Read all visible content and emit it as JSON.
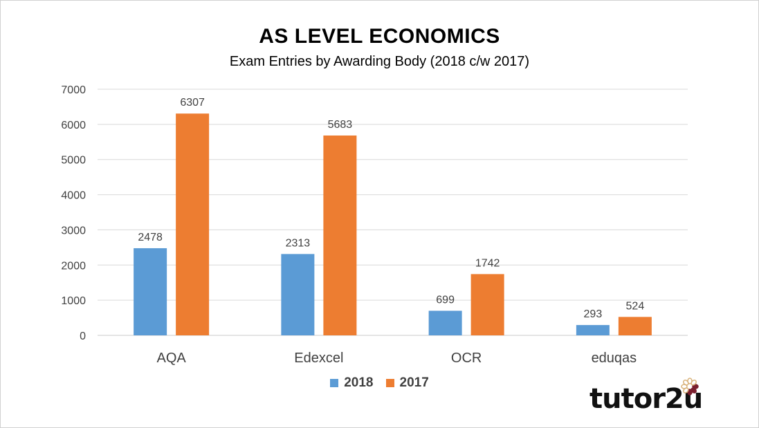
{
  "chart_data": {
    "type": "bar",
    "title": "AS LEVEL ECONOMICS",
    "subtitle": "Exam Entries by Awarding Body (2018 c/w 2017)",
    "categories": [
      "AQA",
      "Edexcel",
      "OCR",
      "eduqas"
    ],
    "series": [
      {
        "name": "2018",
        "values": [
          2478,
          2313,
          699,
          293
        ],
        "color": "#5b9bd5"
      },
      {
        "name": "2017",
        "values": [
          6307,
          5683,
          1742,
          524
        ],
        "color": "#ed7d31"
      }
    ],
    "ylim": [
      0,
      7000
    ],
    "yticks": [
      "0",
      "1000",
      "2000",
      "3000",
      "4000",
      "5000",
      "6000",
      "7000"
    ],
    "grid": true,
    "legend_position": "bottom",
    "data_labels": true
  },
  "branding": {
    "logo_text": "tutor2u",
    "flower_colors": [
      "#7b1f2e",
      "#d9b27a"
    ]
  }
}
